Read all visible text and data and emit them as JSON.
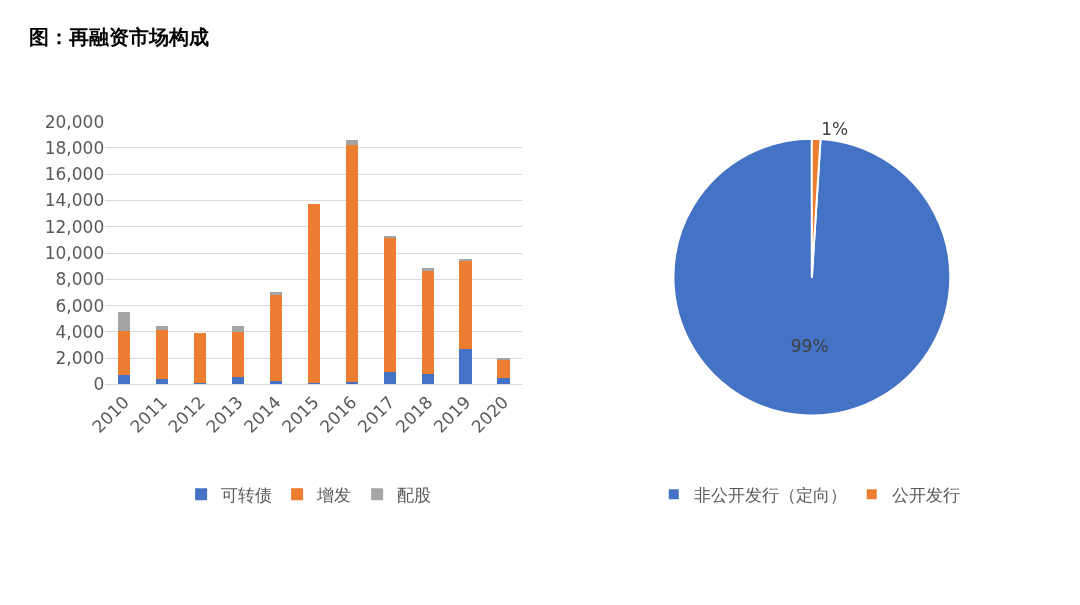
{
  "chart_data": [
    {
      "type": "bar",
      "title": "图：再融资市场构成",
      "stacked": true,
      "grid": "y",
      "legend": "bottom",
      "categories": [
        "2010",
        "2011",
        "2012",
        "2013",
        "2014",
        "2015",
        "2016",
        "2017",
        "2018",
        "2019",
        "2020"
      ],
      "series": [
        {
          "name": "可转债",
          "color": "#4472c4",
          "values": [
            700,
            380,
            140,
            550,
            290,
            100,
            210,
            930,
            790,
            2690,
            500
          ]
        },
        {
          "name": "增发",
          "color": "#ed7d31",
          "values": [
            3370,
            3740,
            3740,
            3450,
            6610,
            13610,
            18050,
            10190,
            7850,
            6670,
            1330
          ]
        },
        {
          "name": "配股",
          "color": "#a5a5a5",
          "values": [
            1450,
            330,
            0,
            450,
            120,
            0,
            310,
            210,
            190,
            210,
            220
          ]
        }
      ],
      "ylim": [
        0,
        20000
      ],
      "yticks": [
        0,
        {
          "value": 2000,
          "label": "2,000"
        },
        {
          "value": 4000,
          "label": "4,000"
        },
        {
          "value": 6000,
          "label": "6,000"
        },
        {
          "value": 8000,
          "label": "8,000"
        },
        {
          "value": 10000,
          "label": "10,000"
        },
        {
          "value": 12000,
          "label": "12,000"
        },
        {
          "value": 14000,
          "label": "14,000"
        },
        {
          "value": 16000,
          "label": "16,000"
        },
        {
          "value": 18000,
          "label": "18,000"
        },
        {
          "value": 20000,
          "label": "20,000"
        }
      ]
    },
    {
      "type": "pie",
      "legend": "bottom",
      "categories": [
        "非公开发行（定向）",
        "公开发行"
      ],
      "values": [
        99,
        1
      ],
      "colors": [
        "#4472c4",
        "#ed7d31"
      ],
      "value_labels": [
        "99%",
        "1%"
      ]
    }
  ]
}
